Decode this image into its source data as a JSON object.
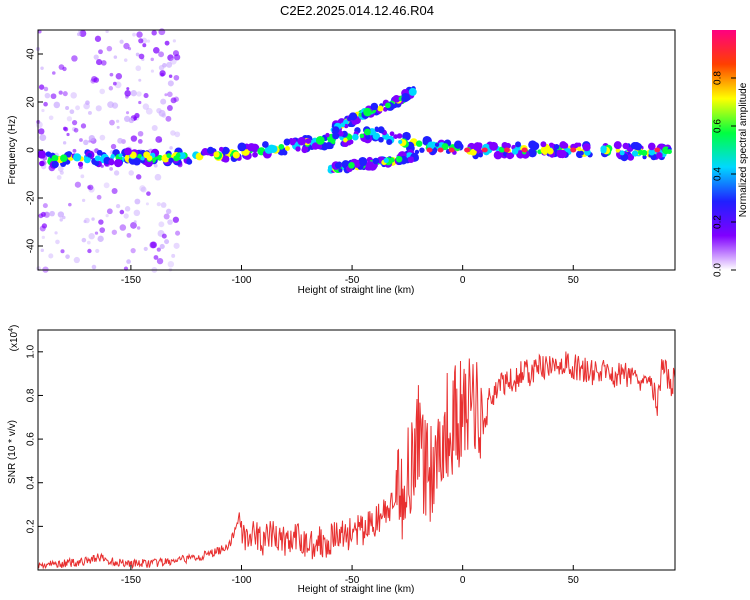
{
  "title": "C2E2.2025.014.12.46.R04",
  "chart_data": [
    {
      "type": "heatmap",
      "xlabel": "Height of straight line (km)",
      "ylabel": "Frequency (Hz)",
      "xlim": [
        -192,
        96
      ],
      "ylim": [
        -50,
        50
      ],
      "xticks": [
        -150,
        -100,
        -50,
        0,
        50
      ],
      "yticks": [
        -40,
        -20,
        0,
        20,
        40
      ],
      "colorbar": {
        "label": "Normalized spectral amplitude",
        "range": [
          0,
          1
        ],
        "ticks": [
          "0.0",
          "0.2",
          "0.4",
          "0.6",
          "0.8"
        ],
        "tick_values": [
          0.0,
          0.2,
          0.4,
          0.6,
          0.8
        ],
        "colormap": [
          "#ffffff",
          "#8000ff",
          "#2020ff",
          "#00d8ff",
          "#00ff40",
          "#ffff00",
          "#ff4000",
          "#ff0080"
        ]
      },
      "ridges": [
        {
          "name": "main",
          "points": [
            [
              -192,
              -4
            ],
            [
              -150,
              -3
            ],
            [
              -120,
              -3
            ],
            [
              -90,
              0
            ],
            [
              -60,
              4
            ],
            [
              -40,
              7
            ],
            [
              -20,
              2
            ],
            [
              0,
              0
            ],
            [
              50,
              0
            ],
            [
              96,
              -1
            ]
          ]
        },
        {
          "name": "upper",
          "points": [
            [
              -60,
              8
            ],
            [
              -45,
              15
            ],
            [
              -30,
              20
            ],
            [
              -22,
              25
            ]
          ]
        },
        {
          "name": "lower",
          "points": [
            [
              -60,
              -8
            ],
            [
              -45,
              -6
            ],
            [
              -30,
              -4
            ],
            [
              -20,
              -2
            ]
          ]
        }
      ]
    },
    {
      "type": "line",
      "xlabel": "Height of straight line (km)",
      "ylabel": "SNR (10 * v/v)",
      "multiplier": "(x10",
      "multiplier_exp": "4",
      "multiplier_close": ")",
      "xlim": [
        -192,
        96
      ],
      "ylim": [
        0,
        1.1
      ],
      "xticks": [
        -150,
        -100,
        -50,
        0,
        50
      ],
      "yticks": [
        0.2,
        0.4,
        0.6,
        0.8,
        1.0
      ],
      "ytick_labels": [
        "0.2",
        "0.4",
        "0.6",
        "0.8",
        "1.0"
      ],
      "series": [
        {
          "color": "#e83030",
          "x": [
            -192,
            -180,
            -170,
            -165,
            -160,
            -150,
            -140,
            -130,
            -120,
            -115,
            -110,
            -105,
            -101,
            -100,
            -95,
            -90,
            -85,
            -80,
            -75,
            -70,
            -65,
            -60,
            -55,
            -50,
            -45,
            -40,
            -35,
            -30,
            -27,
            -25,
            -22,
            -20,
            -18,
            -15,
            -12,
            -10,
            -8,
            -5,
            -2,
            0,
            2,
            5,
            8,
            10,
            12,
            15,
            20,
            25,
            28,
            30,
            35,
            40,
            45,
            50,
            55,
            60,
            65,
            70,
            75,
            80,
            85,
            88,
            90,
            92,
            94,
            96
          ],
          "y": [
            0.02,
            0.03,
            0.04,
            0.06,
            0.04,
            0.03,
            0.03,
            0.04,
            0.06,
            0.07,
            0.09,
            0.12,
            0.25,
            0.18,
            0.15,
            0.14,
            0.16,
            0.13,
            0.14,
            0.12,
            0.13,
            0.14,
            0.16,
            0.17,
            0.18,
            0.22,
            0.26,
            0.3,
            0.38,
            0.45,
            0.55,
            0.62,
            0.5,
            0.45,
            0.52,
            0.58,
            0.65,
            0.68,
            0.7,
            0.72,
            0.73,
            0.75,
            0.74,
            0.66,
            0.78,
            0.83,
            0.86,
            0.88,
            0.92,
            0.9,
            0.93,
            0.92,
            0.95,
            0.93,
            0.92,
            0.9,
            0.91,
            0.89,
            0.9,
            0.88,
            0.9,
            0.75,
            0.92,
            0.9,
            0.85,
            0.88
          ]
        }
      ]
    }
  ]
}
